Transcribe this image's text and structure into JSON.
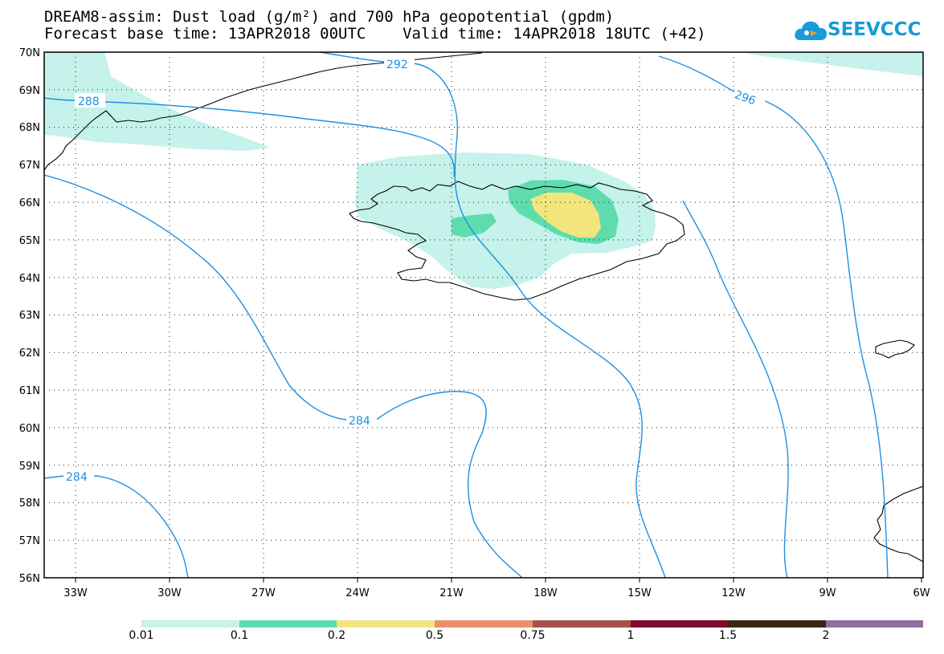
{
  "header": {
    "title_line1": "DREAM8-assim: Dust load (g/m²) and 700 hPa geopotential (gpdm)",
    "title_line2": "Forecast base time: 13APR2018 00UTC    Valid time: 14APR2018 18UTC (+42)"
  },
  "logo": {
    "text": "SEEVCCC",
    "color": "#1a9bd7"
  },
  "map": {
    "lat_labels": [
      "70N",
      "69N",
      "68N",
      "67N",
      "66N",
      "65N",
      "64N",
      "63N",
      "62N",
      "61N",
      "60N",
      "59N",
      "58N",
      "57N",
      "56N"
    ],
    "lon_labels": [
      "33W",
      "30W",
      "27W",
      "24W",
      "21W",
      "18W",
      "15W",
      "12W",
      "9W",
      "6W"
    ],
    "contour_labels": [
      "292",
      "288",
      "296",
      "284",
      "284"
    ],
    "contour_color": "#1f90e0"
  },
  "colorbar": {
    "colors": [
      "#c5f2ea",
      "#5fdcae",
      "#f3e57d",
      "#e9916c",
      "#a5524a",
      "#7f0a2e",
      "#3b2813",
      "#8f6ea0"
    ],
    "labels": [
      "0.01",
      "0.1",
      "0.2",
      "0.5",
      "0.75",
      "1",
      "1.5",
      "2"
    ]
  }
}
